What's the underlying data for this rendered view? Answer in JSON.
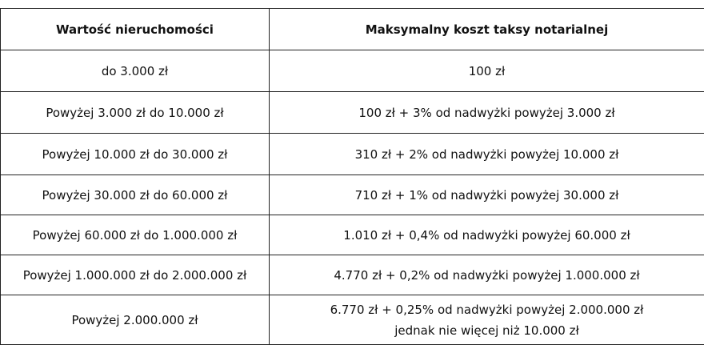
{
  "table": {
    "header": [
      "Wartość nieruchomości",
      "Maksymalny koszt taksy notarialnej"
    ],
    "rows": [
      [
        "do 3.000 zł",
        "100 zł"
      ],
      [
        "Powyżej 3.000 zł do 10.000 zł",
        "100 zł + 3% od nadwyżki powyżej 3.000 zł"
      ],
      [
        "Powyżej 10.000 zł do 30.000 zł",
        "310 zł + 2% od nadwyżki powyżej 10.000 zł"
      ],
      [
        "Powyżej 30.000 zł do 60.000 zł",
        "710 zł + 1% od nadwyżki powyżej 30.000 zł"
      ],
      [
        "Powyżej 60.000 zł do 1.000.000 zł",
        "1.010 zł + 0,4% od nadwyżki powyżej 60.000 zł"
      ],
      [
        "Powyżej 1.000.000 zł do 2.000.000 zł",
        "4.770 zł + 0,2% od nadwyżki powyżej 1.000.000 zł"
      ],
      [
        "Powyżej 2.000.000 zł",
        [
          "6.770 zł + 0,25% od nadwyżki powyżej 2.000.000 zł",
          "jednak nie więcej niż 10.000 zł"
        ]
      ]
    ]
  }
}
